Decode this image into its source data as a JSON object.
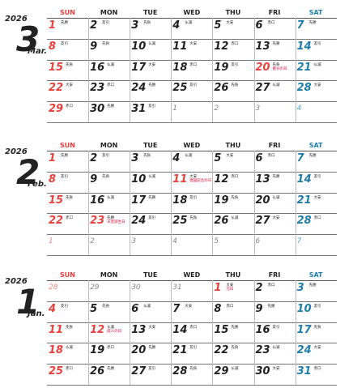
{
  "headers": [
    "SUN",
    "MON",
    "TUE",
    "WED",
    "THU",
    "FRI",
    "SAT"
  ],
  "colors": {
    "sunday": "#e8403c",
    "saturday": "#1e7ea8",
    "holiday": "#e60033",
    "muted": "#888888"
  },
  "months": [
    {
      "year": "2026",
      "number": "3",
      "name": "Mar.",
      "weeks": [
        [
          {
            "d": "1",
            "r": "先勝"
          },
          {
            "d": "2",
            "r": "友引"
          },
          {
            "d": "3",
            "r": "先負"
          },
          {
            "d": "4",
            "r": "仏滅"
          },
          {
            "d": "5",
            "r": "大安"
          },
          {
            "d": "6",
            "r": "赤口"
          },
          {
            "d": "7",
            "r": "先勝"
          }
        ],
        [
          {
            "d": "8",
            "r": "友引"
          },
          {
            "d": "9",
            "r": "先負"
          },
          {
            "d": "10",
            "r": "仏滅"
          },
          {
            "d": "11",
            "r": "大安"
          },
          {
            "d": "12",
            "r": "赤口"
          },
          {
            "d": "13",
            "r": "先勝"
          },
          {
            "d": "14",
            "r": "友引"
          }
        ],
        [
          {
            "d": "15",
            "r": "先負"
          },
          {
            "d": "16",
            "r": "仏滅"
          },
          {
            "d": "17",
            "r": "大安"
          },
          {
            "d": "18",
            "r": "赤口"
          },
          {
            "d": "19",
            "r": "友引"
          },
          {
            "d": "20",
            "r": "先負",
            "h": "春分の日"
          },
          {
            "d": "21",
            "r": "仏滅"
          }
        ],
        [
          {
            "d": "22",
            "r": "大安"
          },
          {
            "d": "23",
            "r": "赤口"
          },
          {
            "d": "24",
            "r": "先勝"
          },
          {
            "d": "25",
            "r": "友引"
          },
          {
            "d": "26",
            "r": "先負"
          },
          {
            "d": "27",
            "r": "仏滅"
          },
          {
            "d": "28",
            "r": "大安"
          }
        ],
        [
          {
            "d": "29",
            "r": "赤口"
          },
          {
            "d": "30",
            "r": "先勝"
          },
          {
            "d": "31",
            "r": "友引"
          },
          {
            "d": "1",
            "m": true
          },
          {
            "d": "2",
            "m": true
          },
          {
            "d": "3",
            "m": true
          },
          {
            "d": "4",
            "m": true
          }
        ]
      ]
    },
    {
      "year": "2026",
      "number": "2",
      "name": "Feb.",
      "weeks": [
        [
          {
            "d": "1",
            "r": "先勝"
          },
          {
            "d": "2",
            "r": "友引"
          },
          {
            "d": "3",
            "r": "先負"
          },
          {
            "d": "4",
            "r": "仏滅"
          },
          {
            "d": "5",
            "r": "大安"
          },
          {
            "d": "6",
            "r": "赤口"
          },
          {
            "d": "7",
            "r": "先勝"
          }
        ],
        [
          {
            "d": "8",
            "r": "友引"
          },
          {
            "d": "9",
            "r": "先負"
          },
          {
            "d": "10",
            "r": "仏滅"
          },
          {
            "d": "11",
            "r": "大安",
            "h": "建国記念の日"
          },
          {
            "d": "12",
            "r": "赤口"
          },
          {
            "d": "13",
            "r": "先勝"
          },
          {
            "d": "14",
            "r": "友引"
          }
        ],
        [
          {
            "d": "15",
            "r": "先負"
          },
          {
            "d": "16",
            "r": "仏滅"
          },
          {
            "d": "17",
            "r": "先勝"
          },
          {
            "d": "18",
            "r": "友引"
          },
          {
            "d": "19",
            "r": "先負"
          },
          {
            "d": "20",
            "r": "仏滅"
          },
          {
            "d": "21",
            "r": "大安"
          }
        ],
        [
          {
            "d": "22",
            "r": "赤口"
          },
          {
            "d": "23",
            "r": "先勝",
            "h": "天皇誕生日"
          },
          {
            "d": "24",
            "r": "友引"
          },
          {
            "d": "25",
            "r": "先負"
          },
          {
            "d": "26",
            "r": "仏滅"
          },
          {
            "d": "27",
            "r": "大安"
          },
          {
            "d": "28",
            "r": "赤口"
          }
        ],
        [
          {
            "d": "1",
            "m": true
          },
          {
            "d": "2",
            "m": true
          },
          {
            "d": "3",
            "m": true
          },
          {
            "d": "4",
            "m": true
          },
          {
            "d": "5",
            "m": true
          },
          {
            "d": "6",
            "m": true
          },
          {
            "d": "7",
            "m": true
          }
        ]
      ]
    },
    {
      "year": "2026",
      "number": "1",
      "name": "Jan.",
      "weeks": [
        [
          {
            "d": "28",
            "m": true
          },
          {
            "d": "29",
            "m": true
          },
          {
            "d": "30",
            "m": true
          },
          {
            "d": "31",
            "m": true
          },
          {
            "d": "1",
            "r": "大安",
            "h": "元日"
          },
          {
            "d": "2",
            "r": "赤口"
          },
          {
            "d": "3",
            "r": "先勝"
          }
        ],
        [
          {
            "d": "4",
            "r": "友引"
          },
          {
            "d": "5",
            "r": "先負"
          },
          {
            "d": "6",
            "r": "仏滅"
          },
          {
            "d": "7",
            "r": "大安"
          },
          {
            "d": "8",
            "r": "赤口"
          },
          {
            "d": "9",
            "r": "先勝"
          },
          {
            "d": "10",
            "r": "友引"
          }
        ],
        [
          {
            "d": "11",
            "r": "先負"
          },
          {
            "d": "12",
            "r": "仏滅",
            "h": "成人の日"
          },
          {
            "d": "13",
            "r": "大安"
          },
          {
            "d": "14",
            "r": "赤口"
          },
          {
            "d": "15",
            "r": "先勝"
          },
          {
            "d": "16",
            "r": "友引"
          },
          {
            "d": "17",
            "r": "先負"
          }
        ],
        [
          {
            "d": "18",
            "r": "仏滅"
          },
          {
            "d": "19",
            "r": "赤口"
          },
          {
            "d": "20",
            "r": "先勝"
          },
          {
            "d": "21",
            "r": "友引"
          },
          {
            "d": "22",
            "r": "先負"
          },
          {
            "d": "23",
            "r": "仏滅"
          },
          {
            "d": "24",
            "r": "大安"
          }
        ],
        [
          {
            "d": "25",
            "r": "赤口"
          },
          {
            "d": "26",
            "r": "先勝"
          },
          {
            "d": "27",
            "r": "友引"
          },
          {
            "d": "28",
            "r": "先負"
          },
          {
            "d": "29",
            "r": "仏滅"
          },
          {
            "d": "30",
            "r": "大安"
          },
          {
            "d": "31",
            "r": "赤口"
          }
        ]
      ]
    }
  ]
}
